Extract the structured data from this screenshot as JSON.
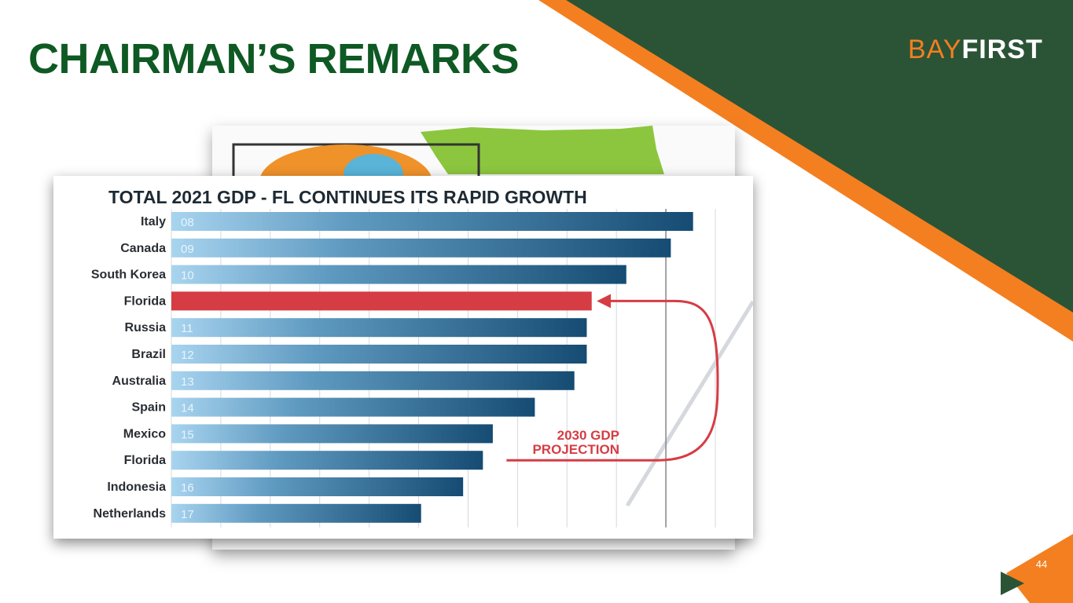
{
  "slide": {
    "title": "CHAIRMAN’S REMARKS",
    "logo_bay": "BAY",
    "logo_first": "FIRST",
    "page_number": "44"
  },
  "colors": {
    "dark_green": "#2b5437",
    "orange": "#f47f20",
    "title_green": "#0f5a24",
    "bar_dark": "#164c73",
    "bar_light": "#a8d4ef",
    "highlight": "#d63c44",
    "rank_label": "#e8f4fb"
  },
  "chart_data": {
    "type": "bar",
    "orientation": "horizontal",
    "title": "TOTAL 2021 GDP - FL CONTINUES ITS RAPID GROWTH",
    "categories": [
      "Italy",
      "Canada",
      "South Korea",
      "Florida",
      "Russia",
      "Brazil",
      "Australia",
      "Spain",
      "Mexico",
      "Florida",
      "Indonesia",
      "Netherlands"
    ],
    "rank_labels": [
      "08",
      "09",
      "10",
      "",
      "11",
      "12",
      "13",
      "14",
      "15",
      "",
      "16",
      "17"
    ],
    "values": [
      2.11,
      2.02,
      1.84,
      1.7,
      1.68,
      1.68,
      1.63,
      1.47,
      1.3,
      1.26,
      1.18,
      1.01
    ],
    "highlight": [
      false,
      false,
      false,
      true,
      false,
      false,
      false,
      false,
      false,
      false,
      false,
      false
    ],
    "xlim": [
      0,
      2.2
    ],
    "grid": true,
    "annotation": {
      "text_line1": "2030 GDP",
      "text_line2": "PROJECTION",
      "from_category_index": 9,
      "to_category_index": 3
    }
  }
}
